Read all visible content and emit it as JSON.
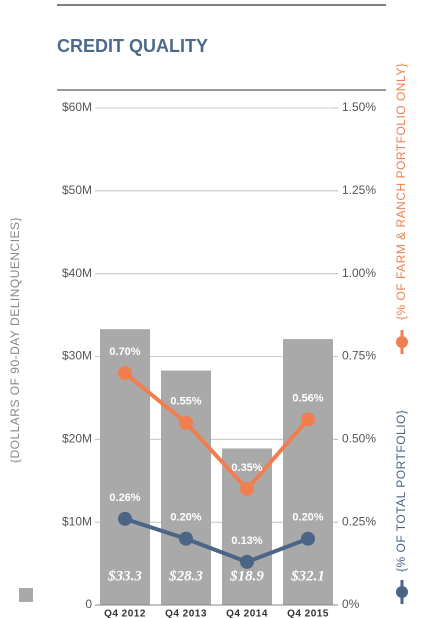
{
  "chart_data": {
    "type": "bar_line",
    "title": "CREDIT QUALITY",
    "categories": [
      "Q4 2012",
      "Q4 2013",
      "Q4 2014",
      "Q4 2015"
    ],
    "bars": {
      "color": "#a9a9a9",
      "values": [
        33.3,
        28.3,
        18.9,
        32.1
      ],
      "value_labels": [
        "$33.3",
        "$28.3",
        "$18.9",
        "$32.1"
      ]
    },
    "y_label": "{DOLLARS OF 90-DAY DELINQUENCIES}",
    "series": [
      {
        "name": "{% OF TOTAL PORTFOLIO}",
        "color": "#4b6587",
        "axis": "y2",
        "values": [
          0.26,
          0.2,
          0.13,
          0.2
        ],
        "value_labels": [
          "0.26%",
          "0.20%",
          "0.13%",
          "0.20%"
        ]
      },
      {
        "name": "{% OF FARM & RANCH PORTFOLIO ONLY}",
        "color": "#f07e4e",
        "axis": "y2",
        "values": [
          0.7,
          0.55,
          0.35,
          0.56
        ],
        "value_labels": [
          "0.70%",
          "0.55%",
          "0.35%",
          "0.56%"
        ]
      }
    ],
    "ylim": [
      0,
      60
    ],
    "yticks": [
      0,
      {
        "value": 10,
        "label": "$10M"
      },
      {
        "value": 20,
        "label": "$20M"
      },
      {
        "value": 30,
        "label": "$30M"
      },
      {
        "value": 40,
        "label": "$40M"
      },
      {
        "value": 50,
        "label": "$50M"
      },
      {
        "value": 60,
        "label": "$60M"
      }
    ],
    "y2lim": [
      0,
      1.5
    ],
    "y2ticks": [
      {
        "value": 0,
        "label": "0%"
      },
      {
        "value": 0.25,
        "label": "0.25%"
      },
      {
        "value": 0.5,
        "label": "0.50%"
      },
      {
        "value": 0.75,
        "label": "0.75%"
      },
      {
        "value": 1.0,
        "label": "1.00%"
      },
      {
        "value": 1.25,
        "label": "1.25%"
      },
      {
        "value": 1.5,
        "label": "1.50%"
      }
    ],
    "grid": true
  }
}
